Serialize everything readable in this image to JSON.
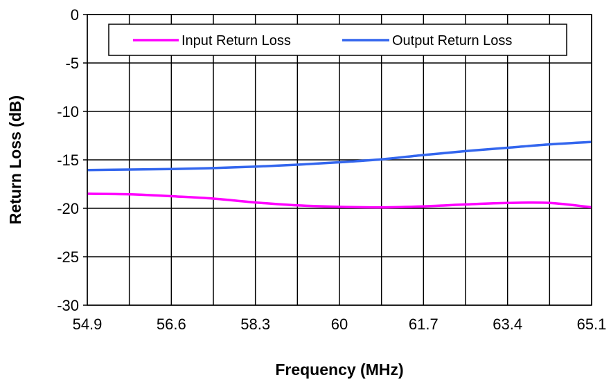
{
  "chart_data": {
    "type": "line",
    "title": "",
    "xlabel": "Frequency (MHz)",
    "ylabel": "Return Loss (dB)",
    "xlim": [
      54.9,
      65.1
    ],
    "ylim": [
      -30,
      0
    ],
    "x_ticks": [
      54.9,
      55.75,
      56.6,
      57.45,
      58.3,
      59.15,
      60.0,
      60.85,
      61.7,
      62.55,
      63.4,
      64.25,
      65.1
    ],
    "x_tick_labels": [
      "54.9",
      "56.6",
      "58.3",
      "60",
      "61.7",
      "63.4",
      "65.1"
    ],
    "x_tick_label_values": [
      54.9,
      56.6,
      58.3,
      60.0,
      61.7,
      63.4,
      65.1
    ],
    "y_ticks": [
      0,
      -5,
      -10,
      -15,
      -20,
      -25,
      -30
    ],
    "y_tick_labels": [
      "0",
      "-5",
      "-10",
      "-15",
      "-20",
      "-25",
      "-30"
    ],
    "grid": true,
    "legend_position": "top",
    "series": [
      {
        "name": "Input Return Loss",
        "color": "#ff00ff",
        "x": [
          54.9,
          55.75,
          56.6,
          57.45,
          58.3,
          59.15,
          60.0,
          60.85,
          61.7,
          62.55,
          63.4,
          64.25,
          65.1
        ],
        "y": [
          -18.5,
          -18.55,
          -18.75,
          -19.0,
          -19.4,
          -19.7,
          -19.85,
          -19.9,
          -19.8,
          -19.6,
          -19.45,
          -19.45,
          -19.9
        ]
      },
      {
        "name": "Output Return Loss",
        "color": "#3366ee",
        "x": [
          54.9,
          55.75,
          56.6,
          57.45,
          58.3,
          59.15,
          60.0,
          60.85,
          61.7,
          62.55,
          63.4,
          64.25,
          65.1
        ],
        "y": [
          -16.05,
          -16.0,
          -15.95,
          -15.85,
          -15.7,
          -15.5,
          -15.25,
          -14.95,
          -14.5,
          -14.1,
          -13.75,
          -13.4,
          -13.15
        ]
      }
    ]
  }
}
